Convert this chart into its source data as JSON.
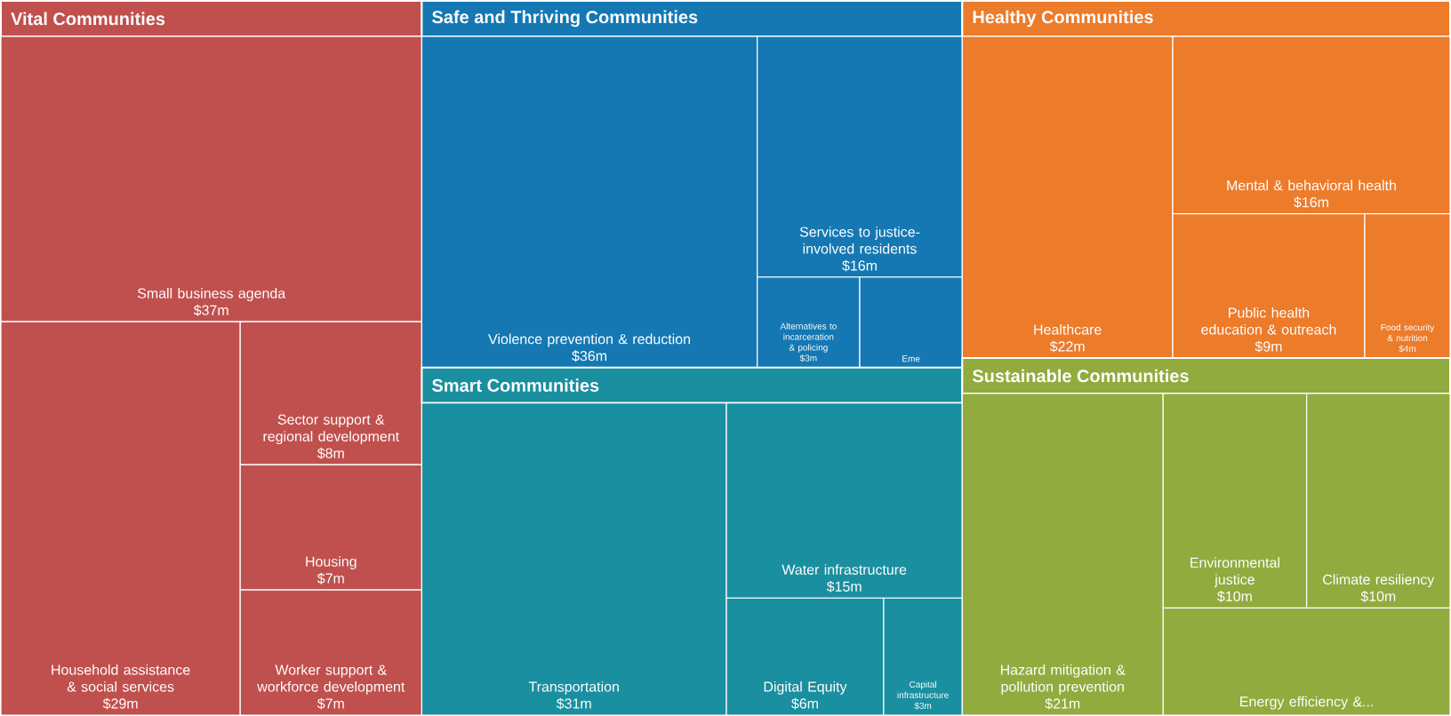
{
  "chart_data": {
    "type": "other",
    "categories": [
      "Small business agenda",
      "Household assistance & social services",
      "Sector support & regional development",
      "Housing",
      "Worker support & workforce development",
      "Violence prevention & reduction",
      "Services to justice-involved residents",
      "Alternatives to incarceration & policing",
      "Eme",
      "Transportation",
      "Water infrastructure",
      "Digital Equity",
      "Capital infrastructure",
      "Healthcare",
      "Mental & behavioral health",
      "Public health education & outreach",
      "Food security & nutrition",
      "Hazard mitigation & pollution prevention",
      "Environmental justice",
      "Climate resiliency",
      "Energy efficiency &..."
    ],
    "series": [
      {
        "name": "Vital Communities",
        "color": "#c0504d",
        "values": [
          37,
          29,
          8,
          7,
          7,
          null,
          null,
          null,
          null,
          null,
          null,
          null,
          null,
          null,
          null,
          null,
          null,
          null,
          null,
          null,
          null
        ],
        "value_labels": [
          "$37m",
          "$29m",
          "$8m",
          "$7m",
          "$7m",
          null,
          null,
          null,
          null,
          null,
          null,
          null,
          null,
          null,
          null,
          null,
          null,
          null,
          null,
          null,
          null
        ]
      },
      {
        "name": "Safe and Thriving Communities",
        "color": "#1578b3",
        "values": [
          null,
          null,
          null,
          null,
          null,
          36,
          16,
          3,
          null,
          null,
          null,
          null,
          null,
          null,
          null,
          null,
          null,
          null,
          null,
          null,
          null
        ],
        "value_labels": [
          null,
          null,
          null,
          null,
          null,
          "$36m",
          "$16m",
          "$3m",
          null,
          null,
          null,
          null,
          null,
          null,
          null,
          null,
          null,
          null,
          null,
          null,
          null
        ]
      },
      {
        "name": "Smart Communities",
        "color": "#1a8fa0",
        "values": [
          null,
          null,
          null,
          null,
          null,
          null,
          null,
          null,
          null,
          31,
          15,
          6,
          3,
          null,
          null,
          null,
          null,
          null,
          null,
          null,
          null
        ],
        "value_labels": [
          null,
          null,
          null,
          null,
          null,
          null,
          null,
          null,
          null,
          "$31m",
          "$15m",
          "$6m",
          "$3m",
          null,
          null,
          null,
          null,
          null,
          null,
          null,
          null
        ]
      },
      {
        "name": "Healthy Communities",
        "color": "#ec7b2a",
        "values": [
          null,
          null,
          null,
          null,
          null,
          null,
          null,
          null,
          null,
          null,
          null,
          null,
          null,
          22,
          16,
          9,
          4,
          null,
          null,
          null,
          null
        ],
        "value_labels": [
          null,
          null,
          null,
          null,
          null,
          null,
          null,
          null,
          null,
          null,
          null,
          null,
          null,
          "$22m",
          "$16m",
          "$9m",
          "$4m",
          null,
          null,
          null,
          null
        ]
      },
      {
        "name": "Sustainable Communities",
        "color": "#92ab3e",
        "values": [
          null,
          null,
          null,
          null,
          null,
          null,
          null,
          null,
          null,
          null,
          null,
          null,
          null,
          null,
          null,
          null,
          null,
          21,
          10,
          10,
          null
        ],
        "value_labels": [
          null,
          null,
          null,
          null,
          null,
          null,
          null,
          null,
          null,
          null,
          null,
          null,
          null,
          null,
          null,
          null,
          null,
          "$21m",
          "$10m",
          "$10m",
          null
        ]
      }
    ]
  }
}
